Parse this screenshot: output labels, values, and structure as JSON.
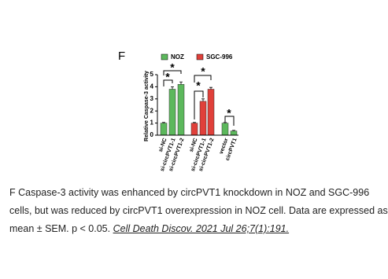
{
  "chart_data": {
    "type": "bar",
    "panel_label": "F",
    "y_label": "Relative Caspase-3 activity",
    "categories": [
      "si-NC",
      "si-circPVT1-1",
      "si-circPVT1-2",
      "si-NC",
      "si-circPVT1-1",
      "si-circPVT1-2",
      "vector",
      "circPVT1"
    ],
    "series": [
      {
        "name": "NOZ",
        "color": "#5cb85c",
        "values": [
          1.0,
          3.8,
          4.2,
          null,
          null,
          null,
          1.0,
          0.35
        ],
        "errors": [
          0.05,
          0.2,
          0.2,
          null,
          null,
          null,
          0.05,
          0.05
        ]
      },
      {
        "name": "SGC-996",
        "color": "#e0403a",
        "values": [
          null,
          null,
          null,
          1.0,
          2.8,
          3.8,
          null,
          null
        ],
        "errors": [
          null,
          null,
          null,
          0.05,
          0.2,
          0.15,
          null,
          null
        ]
      }
    ],
    "ylim": [
      0,
      5
    ],
    "yticks": [
      0,
      1,
      2,
      3,
      4,
      5
    ],
    "annotations": [
      "*",
      "*",
      "*",
      "*",
      "*"
    ]
  },
  "caption": {
    "lines": [
      "F Caspase-3 activity was enhanced by circPVT1 knockdown in NOZ and SGC-996",
      "cells, but was reduced by circPVT1 overexpression in NOZ cell. Data are expressed as",
      "mean ± SEM.  p < 0.05. "
    ],
    "citation": "Cell Death Discov. 2021 Jul 26;7(1):191."
  }
}
